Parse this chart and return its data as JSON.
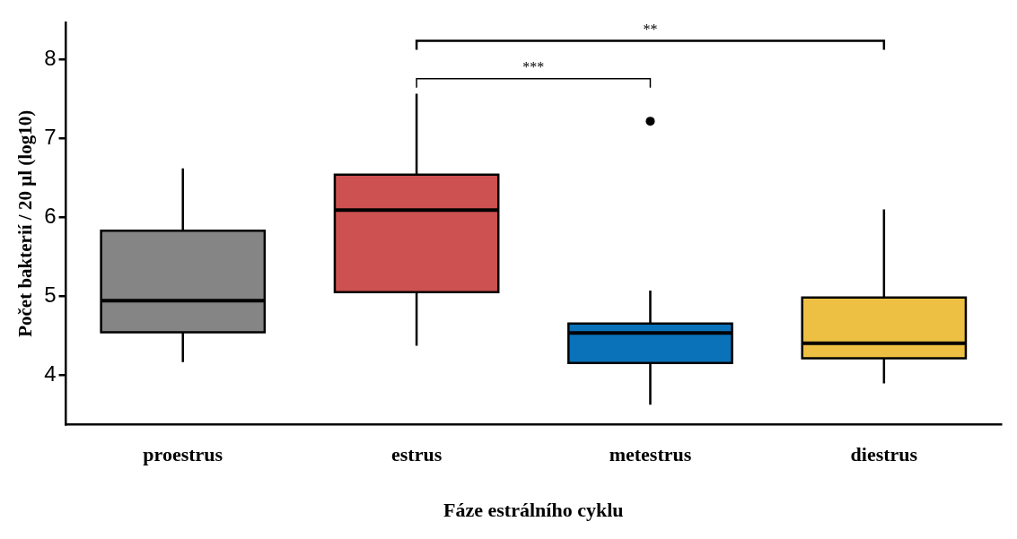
{
  "chart_data": {
    "type": "box",
    "xlabel": "Fáze estrálního cyklu",
    "ylabel": "Počet bakterií / 20 µl (log10)",
    "categories": [
      "proestrus",
      "estrus",
      "metestrus",
      "diestrus"
    ],
    "colors": [
      "#858585",
      "#cd5150",
      "#0a72b9",
      "#edc043"
    ],
    "boxes": [
      {
        "low": 4.16,
        "q1": 4.54,
        "median": 4.94,
        "q3": 5.83,
        "high": 6.62
      },
      {
        "low": 4.37,
        "q1": 5.05,
        "median": 6.09,
        "q3": 6.54,
        "high": 7.57
      },
      {
        "low": 3.62,
        "q1": 4.15,
        "median": 4.53,
        "q3": 4.65,
        "high": 5.07,
        "outliers": [
          7.22
        ]
      },
      {
        "low": 3.89,
        "q1": 4.21,
        "median": 4.4,
        "q3": 4.98,
        "high": 6.1
      }
    ],
    "ylim": [
      3.37,
      8.47
    ],
    "yticks": [
      4,
      5,
      6,
      7,
      8
    ],
    "grid": false,
    "legend": false,
    "annotations": [
      "***",
      "**"
    ]
  }
}
